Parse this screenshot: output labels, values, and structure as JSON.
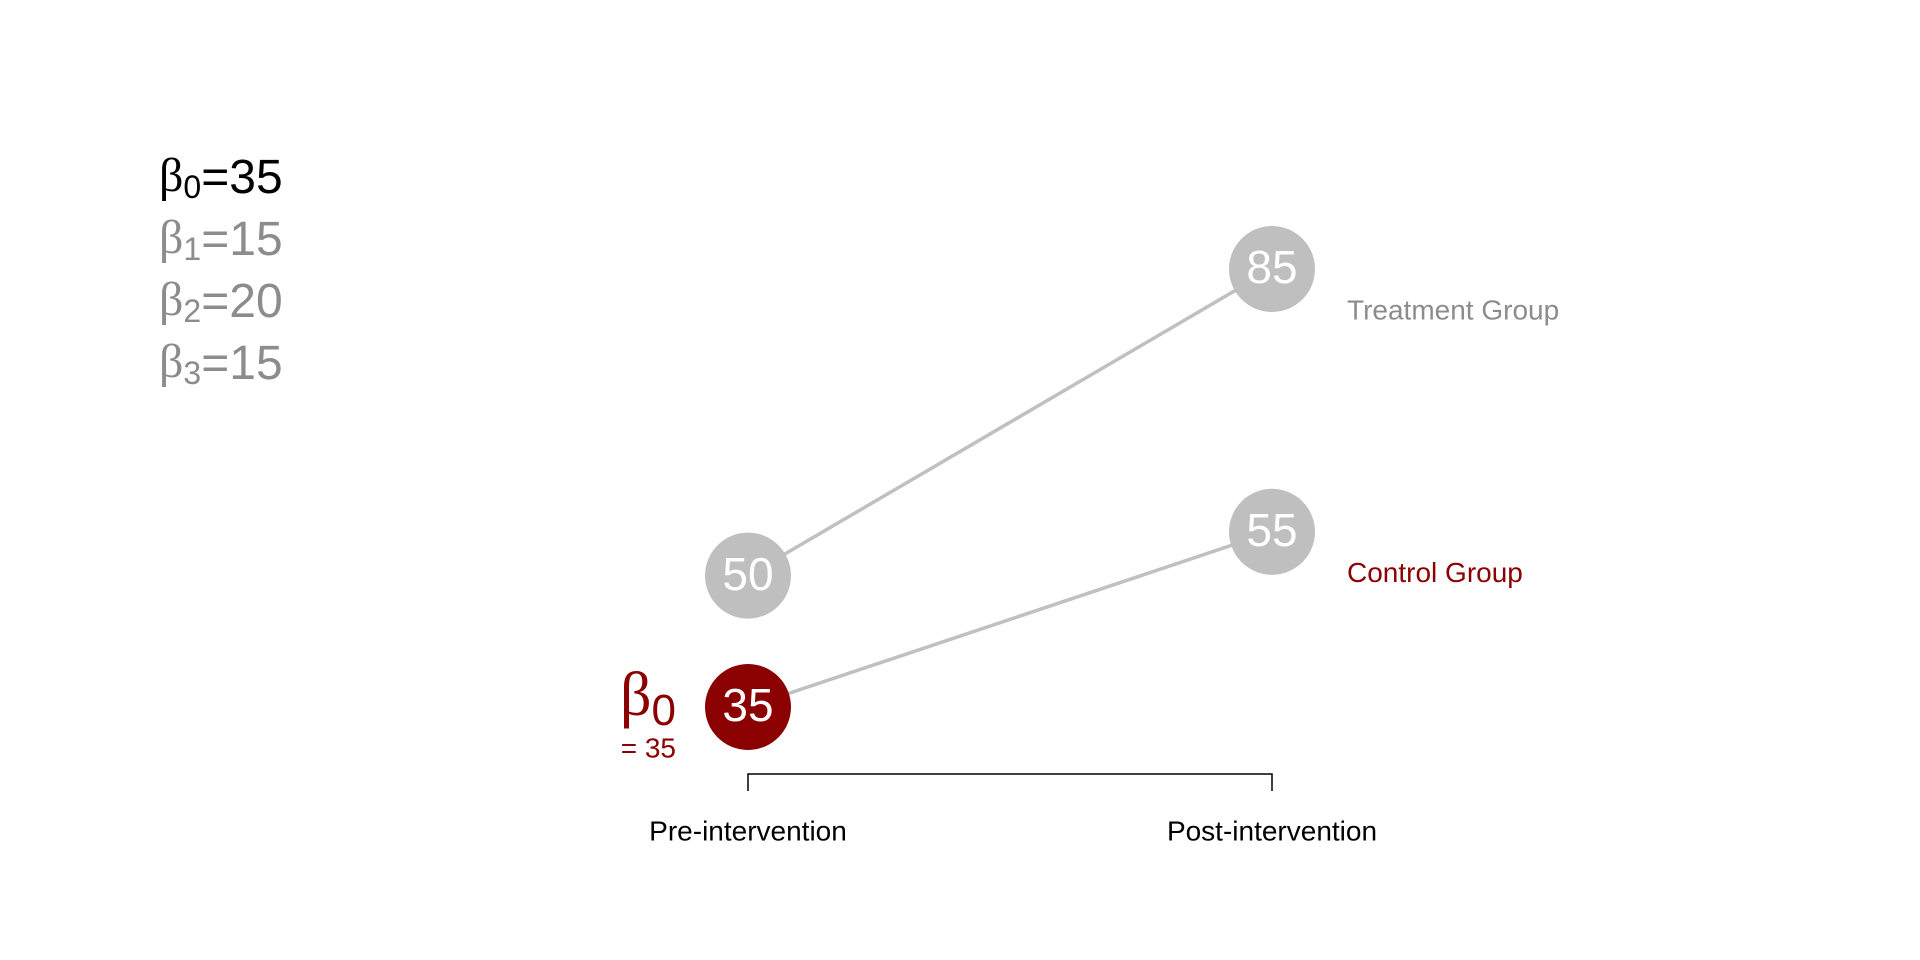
{
  "chart_data": {
    "type": "slope",
    "categories": [
      "Pre-intervention",
      "Post-intervention"
    ],
    "series": [
      {
        "name": "Treatment Group",
        "color": "#8c8c8c",
        "line_color": "#c0c0c0",
        "point_colors": [
          "#bfbfbf",
          "#bfbfbf"
        ],
        "values": [
          50,
          85
        ]
      },
      {
        "name": "Control Group",
        "color": "#8b0000",
        "line_color": "#c0c0c0",
        "point_colors": [
          "#8b0000",
          "#bfbfbf"
        ],
        "values": [
          35,
          55
        ]
      }
    ],
    "coefficients": [
      {
        "symbol": "β",
        "subscript": "0",
        "text": "=35",
        "color": "#000000"
      },
      {
        "symbol": "β",
        "subscript": "1",
        "text": "=15",
        "color": "#8c8c8c"
      },
      {
        "symbol": "β",
        "subscript": "2",
        "text": "=20",
        "color": "#8c8c8c"
      },
      {
        "symbol": "β",
        "subscript": "3",
        "text": "=15",
        "color": "#8c8c8c"
      }
    ],
    "annotation": {
      "symbol": "β",
      "subscript": "0",
      "text": "= 35",
      "color": "#8b0000"
    }
  }
}
